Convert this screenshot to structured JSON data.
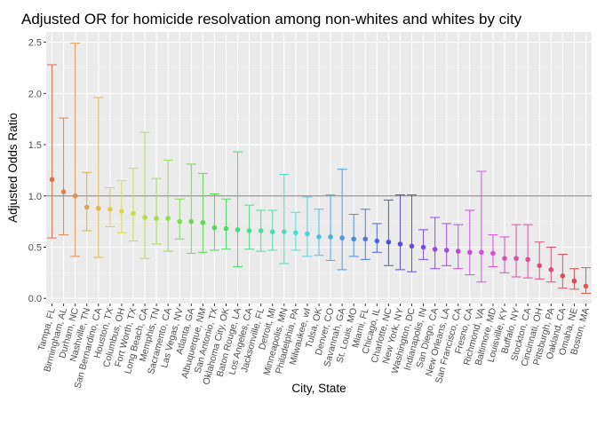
{
  "chart_data": {
    "type": "scatter",
    "title": "Adjusted OR for homicide resolvation among non-whites and whites by city",
    "xlabel": "City, State",
    "ylabel": "Adjusted Odds Ratio",
    "ylim": [
      -0.05,
      2.6
    ],
    "yticks": [
      0.0,
      0.5,
      1.0,
      1.5,
      2.0,
      2.5
    ],
    "ytick_labels": [
      "0.0",
      "0.5",
      "1.0",
      "1.5",
      "2.0",
      "2.5"
    ],
    "reference_line": 1.0,
    "grid": true,
    "legend": "none",
    "categories": [
      "Tampa, FL",
      "Birmingham, AL",
      "Durham, NC",
      "Nashville, TN",
      "San Bernardino, CA",
      "Houston, TX",
      "Columbus, OH",
      "Fort Worth, TX",
      "Long Beach, CA",
      "Memphis, TN",
      "Sacramento, CA",
      "Las Vegas, NV",
      "Atlanta, GA",
      "Albuquerque, NM",
      "San Antonio, TX",
      "Oklahoma City, OK",
      "Baton Rouge, LA",
      "Los Angeles, CA",
      "Jacksonville, FL",
      "Detroit, MI",
      "Minneapolis, MN",
      "Philadelphia, PA",
      "Milwaukee, wI",
      "Tulsa, OK",
      "Denver, CO",
      "Savannah, GA",
      "St. Louis, MO",
      "Miami, FL",
      "Chicago, IL",
      "Charlotte, NC",
      "New York, NY",
      "Washington, DC",
      "Indianapolis, IN",
      "San Diego, CA",
      "New Orleans, LA",
      "San Francisco, CA",
      "Fresno, CA",
      "Richmond, VA",
      "Baltimore, MD",
      "Louisville, KY",
      "Buffalo, NY",
      "Stockton, CA",
      "Cincinnati, OH",
      "Pittsburgh, PA",
      "Oakland, CA",
      "Omaha, NE",
      "Boston, MA"
    ],
    "estimate": [
      1.16,
      1.04,
      1.0,
      0.89,
      0.88,
      0.87,
      0.85,
      0.83,
      0.79,
      0.78,
      0.78,
      0.75,
      0.75,
      0.74,
      0.69,
      0.68,
      0.67,
      0.66,
      0.66,
      0.65,
      0.65,
      0.64,
      0.63,
      0.6,
      0.6,
      0.59,
      0.58,
      0.58,
      0.56,
      0.55,
      0.53,
      0.51,
      0.5,
      0.48,
      0.47,
      0.46,
      0.45,
      0.45,
      0.44,
      0.39,
      0.39,
      0.38,
      0.32,
      0.28,
      0.22,
      0.17,
      0.12
    ],
    "ci_lower": [
      0.59,
      0.62,
      0.41,
      0.66,
      0.4,
      0.7,
      0.64,
      0.56,
      0.39,
      0.53,
      0.46,
      0.58,
      0.44,
      0.45,
      0.47,
      0.48,
      0.31,
      0.48,
      0.46,
      0.47,
      0.34,
      0.47,
      0.41,
      0.42,
      0.37,
      0.28,
      0.41,
      0.38,
      0.45,
      0.32,
      0.28,
      0.26,
      0.38,
      0.29,
      0.32,
      0.29,
      0.23,
      0.16,
      0.31,
      0.25,
      0.21,
      0.2,
      0.19,
      0.16,
      0.1,
      0.09,
      0.05
    ],
    "ci_upper": [
      2.28,
      1.76,
      2.49,
      1.23,
      1.96,
      1.08,
      1.15,
      1.27,
      1.62,
      1.17,
      1.35,
      0.97,
      1.31,
      1.22,
      1.02,
      0.97,
      1.43,
      0.91,
      0.86,
      0.86,
      1.21,
      0.84,
      0.99,
      0.87,
      1.01,
      1.26,
      0.82,
      0.87,
      0.73,
      0.96,
      1.01,
      1.01,
      0.67,
      0.79,
      0.73,
      0.72,
      0.86,
      1.24,
      0.62,
      0.6,
      0.72,
      0.72,
      0.55,
      0.5,
      0.43,
      0.29,
      0.3
    ]
  }
}
